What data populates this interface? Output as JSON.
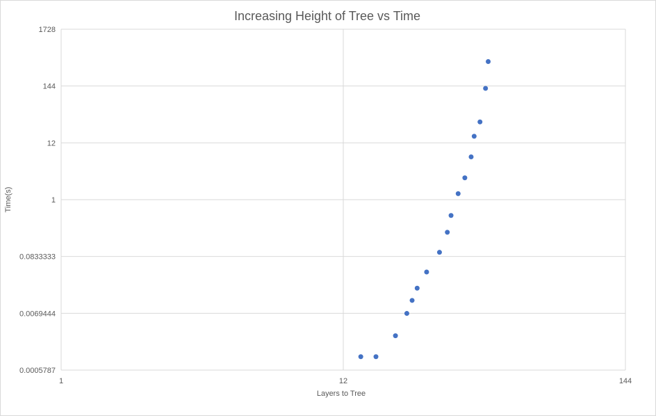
{
  "chart_data": {
    "type": "scatter",
    "title": "Increasing Height of Tree vs Time",
    "xlabel": "Layers to Tree",
    "ylabel": "Time(s)",
    "xscale": "log",
    "yscale": "log",
    "xlim": [
      1,
      144
    ],
    "ylim": [
      0.0005787,
      1728
    ],
    "xticks": [
      "1",
      "12",
      "144"
    ],
    "yticks": [
      "1728",
      "144",
      "12",
      "1",
      "0.0833333",
      "0.0069444",
      "0.0005787"
    ],
    "grid": true,
    "legend": "none",
    "color": "#4472c4",
    "series": [
      {
        "x": [
          14,
          16,
          19,
          21,
          22,
          23,
          25,
          28,
          30,
          31,
          33,
          35,
          37,
          38,
          40,
          42,
          43
        ],
        "y": [
          0.00104,
          0.00104,
          0.0026,
          0.0069,
          0.0122,
          0.0208,
          0.0422,
          0.1,
          0.24,
          0.5,
          1.3,
          2.6,
          6.5,
          16,
          30,
          130,
          420
        ]
      }
    ]
  }
}
